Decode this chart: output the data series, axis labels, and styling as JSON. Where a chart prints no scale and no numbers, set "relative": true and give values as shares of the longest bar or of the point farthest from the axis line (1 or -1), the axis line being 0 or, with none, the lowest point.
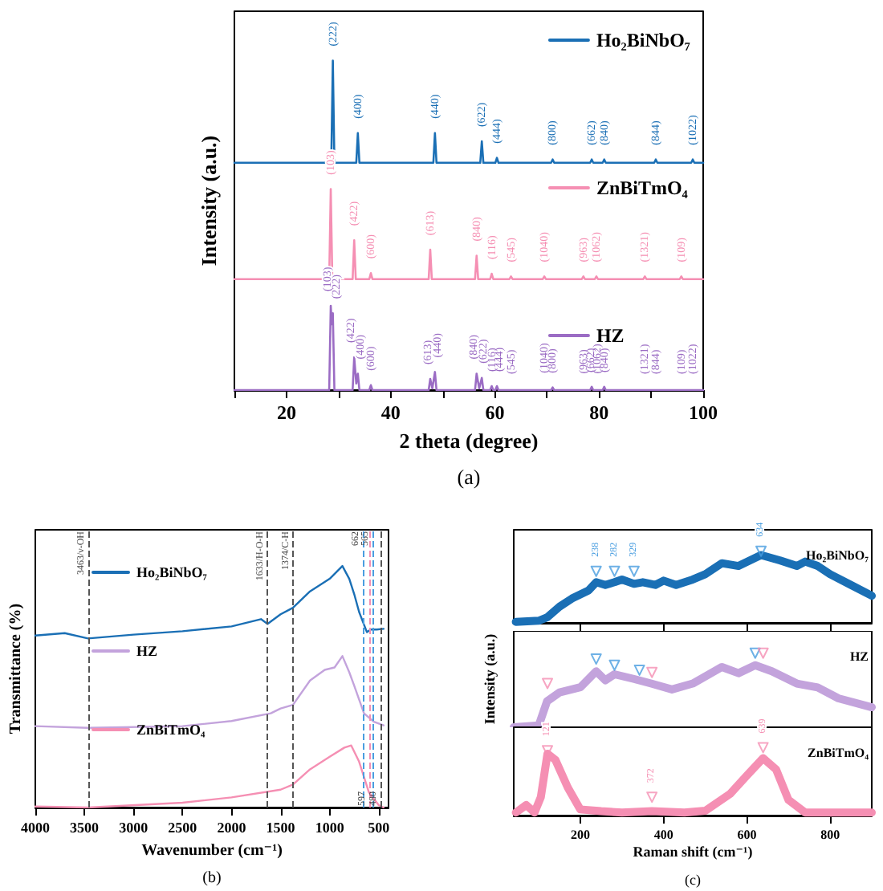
{
  "chart_data": [
    {
      "type": "line",
      "relative": true,
      "xlabel": "2 theta (degree)",
      "ylabel": "Intensity (a.u.)",
      "xlim": [
        10,
        100
      ],
      "xticks": [
        {
          "value": 10,
          "label": null
        },
        20,
        {
          "value": 30,
          "label": null
        },
        40,
        {
          "value": 50,
          "label": null
        },
        60,
        {
          "value": 70,
          "label": null
        },
        80,
        {
          "value": 90,
          "label": null
        },
        100
      ],
      "legend": "right",
      "grid": false,
      "marker": "none",
      "series": [
        {
          "name": "Ho₂BiNbO₇",
          "color": "#1a6fb5",
          "x": [
            10,
            28.6,
            28.9,
            29.2,
            33.4,
            33.7,
            34,
            48.2,
            48.5,
            48.8,
            57.2,
            57.5,
            57.8,
            60.1,
            60.4,
            60.7,
            70.8,
            71.1,
            71.4,
            78.3,
            78.6,
            78.9,
            80.7,
            81,
            81.3,
            90.6,
            90.9,
            91.2,
            97.7,
            98,
            98.3,
            100
          ],
          "values": [
            0.69,
            0.69,
            1.0,
            0.69,
            0.69,
            0.78,
            0.69,
            0.69,
            0.78,
            0.69,
            0.69,
            0.755,
            0.69,
            0.69,
            0.705,
            0.69,
            0.69,
            0.7,
            0.69,
            0.69,
            0.7,
            0.69,
            0.69,
            0.7,
            0.69,
            0.69,
            0.7,
            0.69,
            0.69,
            0.7,
            0.69,
            0.69
          ]
        },
        {
          "name": "ZnBiTmO₄",
          "color": "#f58fb3",
          "x": [
            10,
            28.2,
            28.5,
            28.8,
            32.7,
            33,
            33.3,
            35.9,
            36.2,
            36.5,
            47.3,
            47.6,
            47.9,
            56.2,
            56.5,
            56.8,
            59.1,
            59.4,
            59.7,
            62.8,
            63.1,
            63.4,
            69.2,
            69.5,
            69.8,
            76.7,
            77,
            77.3,
            79.2,
            79.5,
            79.8,
            88.5,
            88.8,
            89.1,
            95.5,
            95.8,
            96.1,
            100
          ],
          "values": [
            0.337,
            0.337,
            0.61,
            0.337,
            0.337,
            0.455,
            0.337,
            0.337,
            0.355,
            0.337,
            0.337,
            0.426,
            0.337,
            0.337,
            0.408,
            0.337,
            0.337,
            0.353,
            0.337,
            0.337,
            0.345,
            0.337,
            0.337,
            0.345,
            0.337,
            0.337,
            0.345,
            0.337,
            0.337,
            0.345,
            0.337,
            0.337,
            0.345,
            0.337,
            0.337,
            0.345,
            0.337,
            0.337
          ]
        },
        {
          "name": "HZ",
          "color": "#9b6cc4",
          "x": [
            10,
            28.2,
            28.5,
            28.7,
            28.9,
            29.2,
            32.7,
            33,
            33.4,
            33.7,
            34,
            35.9,
            36.2,
            36.5,
            47.3,
            47.6,
            48,
            48.5,
            48.8,
            56.2,
            56.5,
            57,
            57.5,
            57.8,
            59.1,
            59.4,
            59.7,
            60.1,
            60.4,
            60.7,
            70.8,
            71.1,
            71.4,
            78.3,
            78.6,
            78.9,
            80.7,
            81,
            81.3,
            100
          ],
          "values": [
            0,
            0,
            0.256,
            0.2,
            0.233,
            0,
            0,
            0.1,
            0.02,
            0.05,
            0,
            0,
            0.015,
            0,
            0,
            0.034,
            0.005,
            0.055,
            0,
            0,
            0.05,
            0.005,
            0.037,
            0,
            0,
            0.012,
            0,
            0,
            0.012,
            0,
            0,
            0.008,
            0,
            0,
            0.01,
            0,
            0,
            0.01,
            0,
            0
          ]
        }
      ],
      "annotations": [
        "(a)",
        {
          "text": "(222)",
          "x": 28.9,
          "y": 1.0
        },
        {
          "text": "(400)",
          "x": 33.7,
          "y": 0.78
        },
        {
          "text": "(440)",
          "x": 48.5,
          "y": 0.78
        },
        {
          "text": "(622)",
          "x": 57.5,
          "y": 0.755
        },
        {
          "text": "(444)",
          "x": 60.4,
          "y": 0.705
        },
        {
          "text": "(800)",
          "x": 71.1,
          "y": 0.7
        },
        {
          "text": "(662)",
          "x": 78.6,
          "y": 0.7
        },
        {
          "text": "(840)",
          "x": 81,
          "y": 0.7
        },
        {
          "text": "(844)",
          "x": 90.9,
          "y": 0.7
        },
        {
          "text": "(1022)",
          "x": 98,
          "y": 0.7
        },
        {
          "text": "(103)",
          "x": 28.5,
          "y": 0.61
        },
        {
          "text": "(422)",
          "x": 33,
          "y": 0.455
        },
        {
          "text": "(600)",
          "x": 36.2,
          "y": 0.355
        },
        {
          "text": "(613)",
          "x": 47.6,
          "y": 0.426
        },
        {
          "text": "(840)",
          "x": 56.5,
          "y": 0.408
        },
        {
          "text": "(116)",
          "x": 59.4,
          "y": 0.353
        },
        {
          "text": "(545)",
          "x": 63.1,
          "y": 0.345
        },
        {
          "text": "(1040)",
          "x": 69.5,
          "y": 0.345
        },
        {
          "text": "(963)",
          "x": 77,
          "y": 0.345
        },
        {
          "text": "(1062)",
          "x": 79.5,
          "y": 0.345
        },
        {
          "text": "(1321)",
          "x": 88.8,
          "y": 0.345
        },
        {
          "text": "(109)",
          "x": 95.8,
          "y": 0.345
        },
        {
          "text": "(103)",
          "x": 27.8,
          "y": 0.256
        },
        {
          "text": "(222)",
          "x": 29.6,
          "y": 0.233
        },
        {
          "text": "(422)",
          "x": 32.4,
          "y": 0.1
        },
        {
          "text": "(400)",
          "x": 34.2,
          "y": 0.05
        },
        {
          "text": "(600)",
          "x": 36.2,
          "y": 0.015
        },
        {
          "text": "(613)",
          "x": 47.2,
          "y": 0.034
        },
        {
          "text": "(440)",
          "x": 49,
          "y": 0.055
        },
        {
          "text": "(840)",
          "x": 56,
          "y": 0.05
        },
        {
          "text": "(622)",
          "x": 57.8,
          "y": 0.037
        },
        {
          "text": "(116)",
          "x": 59.4,
          "y": 0.012
        },
        {
          "text": "(444)",
          "x": 60.8,
          "y": 0.012
        },
        {
          "text": "(545)",
          "x": 63.1,
          "y": 0.005
        },
        {
          "text": "(1040)",
          "x": 69.5,
          "y": 0.008
        },
        {
          "text": "(800)",
          "x": 71.1,
          "y": 0.008
        },
        {
          "text": "(963)",
          "x": 77,
          "y": 0.006
        },
        {
          "text": "(662)",
          "x": 78.4,
          "y": 0.01
        },
        {
          "text": "(1062)",
          "x": 79.6,
          "y": 0.006
        },
        {
          "text": "(840)",
          "x": 81,
          "y": 0.01
        },
        {
          "text": "(1321)",
          "x": 88.8,
          "y": 0.005
        },
        {
          "text": "(844)",
          "x": 90.9,
          "y": 0.005
        },
        {
          "text": "(109)",
          "x": 95.8,
          "y": 0.005
        },
        {
          "text": "(1022)",
          "x": 98,
          "y": 0.005
        }
      ]
    },
    {
      "type": "line",
      "relative": true,
      "xlabel": "Wavenumber (cm⁻¹)",
      "ylabel": "Transmittance (%)",
      "xlim": [
        4000,
        400
      ],
      "xticks": [
        4000,
        3500,
        3000,
        2500,
        2000,
        1500,
        1000,
        500
      ],
      "legend": "left",
      "grid": false,
      "marker": "none",
      "series": [
        {
          "name": "Ho₂BiNbO₇",
          "color": "#1a6fb5",
          "x": [
            4000,
            3700,
            3463,
            3000,
            2500,
            2000,
            1700,
            1633,
            1500,
            1374,
            1200,
            1000,
            870,
            800,
            750,
            700,
            620,
            580,
            520,
            450
          ],
          "values": [
            0.712,
            0.722,
            0.7,
            0.716,
            0.73,
            0.75,
            0.78,
            0.76,
            0.8,
            0.827,
            0.895,
            0.947,
            1.0,
            0.947,
            0.884,
            0.81,
            0.726,
            0.737,
            0.737,
            0.74
          ]
        },
        {
          "name": "HZ",
          "color": "#c3a3dc",
          "x": [
            4000,
            3463,
            2500,
            2000,
            1600,
            1500,
            1374,
            1200,
            1050,
            950,
            870,
            800,
            750,
            650,
            550,
            450
          ],
          "values": [
            0.337,
            0.33,
            0.337,
            0.358,
            0.39,
            0.41,
            0.425,
            0.526,
            0.57,
            0.58,
            0.627,
            0.56,
            0.505,
            0.39,
            0.355,
            0.34
          ]
        },
        {
          "name": "ZnBiTmO₄",
          "color": "#f58fb3",
          "x": [
            4000,
            3463,
            2500,
            2000,
            1500,
            1374,
            1200,
            1000,
            850,
            780,
            700,
            600,
            500,
            450
          ],
          "values": [
            0.004,
            0,
            0.02,
            0.042,
            0.074,
            0.095,
            0.158,
            0.21,
            0.248,
            0.257,
            0.19,
            0.063,
            0.01,
            0
          ]
        }
      ],
      "ref_lines": [
        {
          "axis": "x",
          "value": 3463,
          "label": "3463/ν-OH",
          "color": "#555555",
          "line_style": "dashed"
        },
        {
          "axis": "x",
          "value": 1633,
          "label": "1633/H-O-H",
          "color": "#555555",
          "line_style": "dashed"
        },
        {
          "axis": "x",
          "value": 1374,
          "label": "1374/C-H",
          "color": "#555555",
          "line_style": "dashed"
        },
        {
          "axis": "x",
          "value": 662,
          "label": "662",
          "color": "#4a9ee0",
          "line_style": "dashed"
        },
        {
          "axis": "x",
          "value": 597,
          "label": "597",
          "color": "#f58fb3",
          "line_style": "dashed"
        },
        {
          "axis": "x",
          "value": 565,
          "label": "565",
          "color": "#4a9ee0",
          "line_style": "dashed"
        },
        {
          "axis": "x",
          "value": 480,
          "label": "480",
          "color": "#555555",
          "line_style": "dashed"
        }
      ],
      "annotations": [
        "(b)"
      ]
    },
    {
      "type": "line",
      "relative": true,
      "xlim": [
        40,
        900
      ],
      "xticks": [
        200,
        400,
        600,
        800
      ],
      "tick_labels": false,
      "legend": "top right",
      "grid": false,
      "series": [
        {
          "name": "Ho₂BiNbO₇",
          "color": "#1a6fb5",
          "marker": "none",
          "x": [
            45,
            100,
            120,
            150,
            180,
            220,
            238,
            260,
            282,
            300,
            329,
            350,
            380,
            400,
            430,
            470,
            500,
            540,
            580,
            634,
            680,
            720,
            740,
            770,
            800,
            850,
            900
          ],
          "values": [
            0.015,
            0.03,
            0.076,
            0.227,
            0.341,
            0.455,
            0.568,
            0.53,
            0.568,
            0.606,
            0.545,
            0.568,
            0.53,
            0.59,
            0.53,
            0.606,
            0.68,
            0.833,
            0.795,
            0.947,
            0.871,
            0.795,
            0.856,
            0.795,
            0.68,
            0.53,
            0.379
          ]
        },
        {
          "type": "scatter",
          "marker": "triangle",
          "color": "#4a9ee0",
          "x": [
            238,
            282,
            329,
            634
          ],
          "values": [
            0.72,
            0.72,
            0.72,
            1.0
          ]
        }
      ],
      "annotations": [
        {
          "text": "238",
          "x": 238,
          "y": 0.72
        },
        {
          "text": "282",
          "x": 282,
          "y": 0.72
        },
        {
          "text": "329",
          "x": 329,
          "y": 0.72
        },
        {
          "text": "634",
          "x": 634,
          "y": 1.0
        }
      ]
    },
    {
      "type": "line",
      "relative": true,
      "xlim": [
        40,
        900
      ],
      "xticks": [
        200,
        400,
        600,
        800
      ],
      "tick_labels": false,
      "legend": "top right",
      "grid": false,
      "ylabel": "Intensity (a.u.)",
      "series": [
        {
          "name": "HZ",
          "color": "#c3a3dc",
          "marker": "none",
          "x": [
            40,
            100,
            120,
            150,
            200,
            238,
            260,
            282,
            330,
            370,
            420,
            470,
            540,
            580,
            620,
            660,
            720,
            770,
            820,
            900
          ],
          "values": [
            0,
            0.024,
            0.35,
            0.47,
            0.54,
            0.756,
            0.634,
            0.715,
            0.65,
            0.59,
            0.51,
            0.59,
            0.813,
            0.73,
            0.837,
            0.756,
            0.59,
            0.537,
            0.39,
            0.27
          ]
        },
        {
          "type": "scatter",
          "marker": "triangle",
          "color": "#4a9ee0",
          "x": [
            238,
            282,
            342,
            620
          ],
          "values": [
            0.92,
            0.837,
            0.77,
            1.0
          ]
        },
        {
          "type": "scatter",
          "marker": "triangle",
          "color": "#f58fb3",
          "x": [
            121,
            372,
            639
          ],
          "values": [
            0.59,
            0.74,
            1.0
          ]
        }
      ]
    },
    {
      "type": "line",
      "relative": true,
      "xlabel": "Raman shift (cm⁻¹)",
      "xlim": [
        40,
        900
      ],
      "xticks": [
        200,
        400,
        600,
        800
      ],
      "tick_labels": "x",
      "legend": "top right",
      "grid": false,
      "series": [
        {
          "name": "ZnBiTmO₄",
          "color": "#f58fb3",
          "marker": "none",
          "x": [
            45,
            70,
            90,
            105,
            121,
            140,
            170,
            200,
            250,
            300,
            372,
            450,
            500,
            560,
            600,
            639,
            670,
            700,
            740,
            800,
            900
          ],
          "values": [
            0.045,
            0.155,
            0.045,
            0.27,
            0.91,
            0.82,
            0.41,
            0.09,
            0.064,
            0.045,
            0.064,
            0.045,
            0.07,
            0.32,
            0.59,
            0.845,
            0.68,
            0.23,
            0.045,
            0.045,
            0.045
          ]
        },
        {
          "type": "scatter",
          "marker": "triangle",
          "color": "#f58fb3",
          "x": [
            121,
            372,
            639
          ],
          "values": [
            0.955,
            0.27,
            1.0
          ]
        }
      ],
      "annotations": [
        {
          "text": "121",
          "x": 121,
          "y": 0.955
        },
        {
          "text": "372",
          "x": 372,
          "y": 0.27
        },
        {
          "text": "639",
          "x": 639,
          "y": 1.0
        },
        "(c)"
      ]
    }
  ]
}
